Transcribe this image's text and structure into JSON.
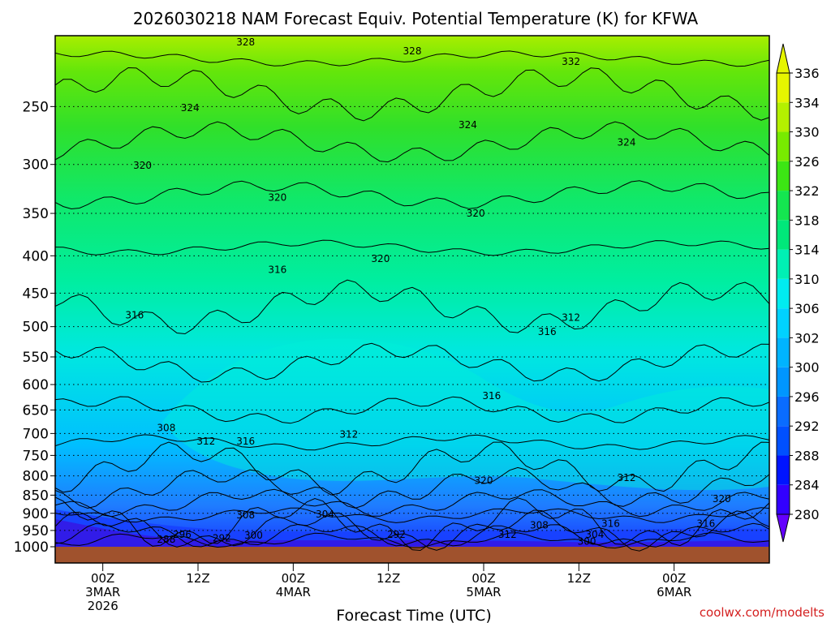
{
  "chart_data": {
    "type": "heatmap",
    "title": "2026030218 NAM Forecast Equiv. Potential Temperature (K) for KFWA",
    "xlabel": "Forecast Time (UTC)",
    "ylabel": "",
    "credit": "coolwx.com/modelts",
    "y_scale": "log",
    "ylim": [
      1000,
      200
    ],
    "y_ticks": [
      250,
      300,
      350,
      400,
      450,
      500,
      550,
      600,
      650,
      700,
      750,
      800,
      850,
      900,
      950,
      1000
    ],
    "x_hours_range": [
      -6,
      84
    ],
    "x_ticks": [
      {
        "hour": 0,
        "line1": "00Z",
        "line2": "3MAR",
        "line3": "2026"
      },
      {
        "hour": 12,
        "line1": "12Z",
        "line2": "",
        "line3": ""
      },
      {
        "hour": 24,
        "line1": "00Z",
        "line2": "4MAR",
        "line3": ""
      },
      {
        "hour": 36,
        "line1": "12Z",
        "line2": "",
        "line3": ""
      },
      {
        "hour": 48,
        "line1": "00Z",
        "line2": "5MAR",
        "line3": ""
      },
      {
        "hour": 60,
        "line1": "12Z",
        "line2": "",
        "line3": ""
      },
      {
        "hour": 72,
        "line1": "00Z",
        "line2": "6MAR",
        "line3": ""
      }
    ],
    "colorbar": {
      "levels": [
        280,
        284,
        288,
        292,
        296,
        300,
        302,
        306,
        310,
        314,
        318,
        322,
        326,
        330,
        334,
        336
      ],
      "colors": [
        "#6400ff",
        "#3200ff",
        "#0014ff",
        "#0050ff",
        "#0a6cff",
        "#0096ff",
        "#00b4ff",
        "#00d2ff",
        "#00ecf0",
        "#00f0b4",
        "#00e87a",
        "#14e650",
        "#3ce614",
        "#78eb00",
        "#b4f000",
        "#e6f500"
      ]
    },
    "contour_labels": [
      {
        "hour": 8,
        "p": 977,
        "value": "288"
      },
      {
        "hour": 10,
        "p": 962,
        "value": "296"
      },
      {
        "hour": 15,
        "p": 974,
        "value": "292"
      },
      {
        "hour": 19,
        "p": 965,
        "value": "300"
      },
      {
        "hour": 37,
        "p": 962,
        "value": "292"
      },
      {
        "hour": 51,
        "p": 962,
        "value": "312"
      },
      {
        "hour": 61,
        "p": 983,
        "value": "300"
      },
      {
        "hour": 62,
        "p": 962,
        "value": "304"
      },
      {
        "hour": 55,
        "p": 935,
        "value": "308"
      },
      {
        "hour": 64,
        "p": 930,
        "value": "316"
      },
      {
        "hour": 76,
        "p": 930,
        "value": "316"
      },
      {
        "hour": 18,
        "p": 905,
        "value": "308"
      },
      {
        "hour": 28,
        "p": 903,
        "value": "304"
      },
      {
        "hour": 48,
        "p": 812,
        "value": "320"
      },
      {
        "hour": 66,
        "p": 805,
        "value": "312"
      },
      {
        "hour": 78,
        "p": 860,
        "value": "320"
      },
      {
        "hour": 8,
        "p": 688,
        "value": "308"
      },
      {
        "hour": 13,
        "p": 717,
        "value": "312"
      },
      {
        "hour": 18,
        "p": 717,
        "value": "316"
      },
      {
        "hour": 31,
        "p": 702,
        "value": "312"
      },
      {
        "hour": 49,
        "p": 622,
        "value": "316"
      },
      {
        "hour": 56,
        "p": 508,
        "value": "316"
      },
      {
        "hour": 59,
        "p": 486,
        "value": "312"
      },
      {
        "hour": 4,
        "p": 482,
        "value": "316"
      },
      {
        "hour": 22,
        "p": 418,
        "value": "316"
      },
      {
        "hour": 35,
        "p": 404,
        "value": "320"
      },
      {
        "hour": 22,
        "p": 333,
        "value": "320"
      },
      {
        "hour": 47,
        "p": 350,
        "value": "320"
      },
      {
        "hour": 5,
        "p": 301,
        "value": "320"
      },
      {
        "hour": 11,
        "p": 251,
        "value": "324"
      },
      {
        "hour": 46,
        "p": 265,
        "value": "324"
      },
      {
        "hour": 66,
        "p": 280,
        "value": "324"
      },
      {
        "hour": 18,
        "p": 204,
        "value": "328"
      },
      {
        "hour": 39,
        "p": 210,
        "value": "328"
      },
      {
        "hour": 59,
        "p": 217,
        "value": "332"
      }
    ]
  }
}
